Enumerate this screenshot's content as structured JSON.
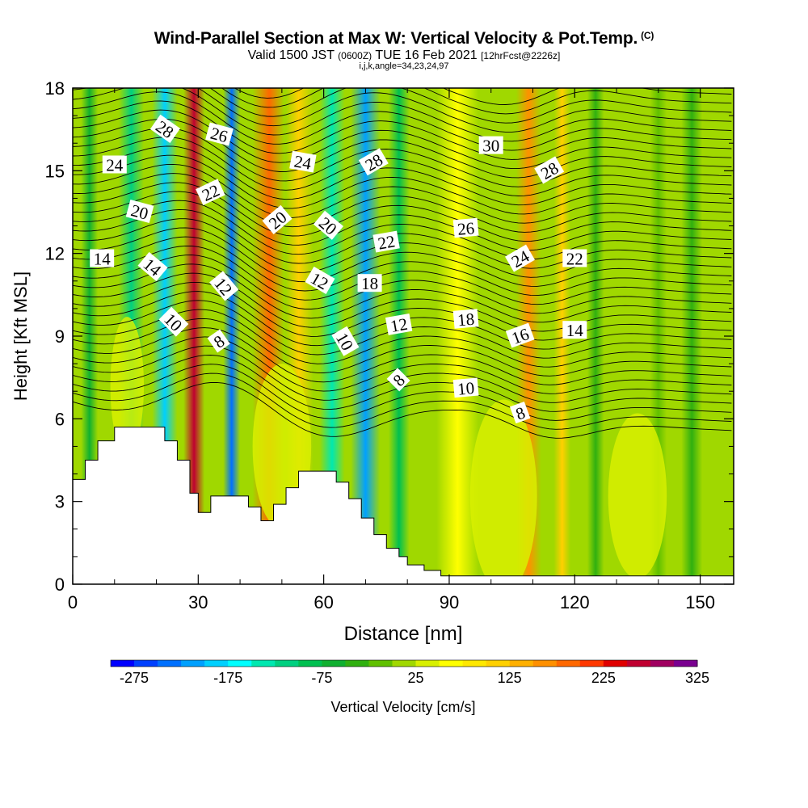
{
  "header": {
    "title": "Wind-Parallel Section at Max W: Vertical Velocity & Pot.Temp.",
    "copyright": "(C)",
    "valid_prefix": "Valid 1500 JST",
    "valid_z": "(0600Z)",
    "valid_date": "TUE 16 Feb 2021",
    "forecast": "[12hrFcst@2226z]",
    "indices": "i,j,k,angle=34,23,24,97"
  },
  "chart_data": {
    "type": "heatmap",
    "xlabel": "Distance [nm]",
    "ylabel": "Height [Kft MSL]",
    "xlim": [
      0,
      158
    ],
    "ylim": [
      0,
      18
    ],
    "x_ticks": [
      0,
      30,
      60,
      90,
      120,
      150
    ],
    "y_ticks": [
      0,
      3,
      6,
      9,
      12,
      15,
      18
    ],
    "colorbar": {
      "label": "Vertical Velocity [cm/s]",
      "tick_labels": [
        "-275",
        "-175",
        "-75",
        "25",
        "125",
        "225",
        "325"
      ],
      "min": -300,
      "max": 325,
      "step": 25,
      "colors": [
        "#0000ff",
        "#0040ff",
        "#0070ff",
        "#00a0ff",
        "#00d0ff",
        "#00ffff",
        "#00e8b0",
        "#00d080",
        "#00c050",
        "#10b030",
        "#30b010",
        "#60c000",
        "#a0d800",
        "#d8f000",
        "#ffff00",
        "#ffe800",
        "#ffd000",
        "#ffb000",
        "#ff9000",
        "#ff6800",
        "#ff3800",
        "#e00000",
        "#c00030",
        "#a00060",
        "#7a0090"
      ]
    },
    "terrain": [
      [
        0,
        3.8
      ],
      [
        3,
        4.5
      ],
      [
        6,
        5.2
      ],
      [
        10,
        5.7
      ],
      [
        19,
        5.7
      ],
      [
        22,
        5.2
      ],
      [
        25,
        4.5
      ],
      [
        28,
        3.3
      ],
      [
        30,
        2.6
      ],
      [
        33,
        3.2
      ],
      [
        39,
        3.2
      ],
      [
        42,
        2.8
      ],
      [
        45,
        2.3
      ],
      [
        48,
        2.9
      ],
      [
        51,
        3.5
      ],
      [
        54,
        4.1
      ],
      [
        60,
        4.1
      ],
      [
        63,
        3.7
      ],
      [
        66,
        3.1
      ],
      [
        69,
        2.4
      ],
      [
        72,
        1.8
      ],
      [
        75,
        1.3
      ],
      [
        78,
        1.0
      ],
      [
        80,
        0.7
      ],
      [
        84,
        0.5
      ],
      [
        88,
        0.3
      ],
      [
        158,
        0.3
      ]
    ],
    "w_bands": [
      {
        "x": 4,
        "w": 4,
        "value": -75
      },
      {
        "x": 14,
        "w": 6,
        "value": -125
      },
      {
        "x": 22,
        "w": 6,
        "value": -200
      },
      {
        "x": 29,
        "w": 5,
        "value": 250
      },
      {
        "x": 38,
        "w": 4,
        "value": -250
      },
      {
        "x": 47,
        "w": 8,
        "value": 175
      },
      {
        "x": 54,
        "w": 7,
        "value": 100
      },
      {
        "x": 62,
        "w": 6,
        "value": -150
      },
      {
        "x": 70,
        "w": 7,
        "value": -225
      },
      {
        "x": 78,
        "w": 5,
        "value": -100
      },
      {
        "x": 92,
        "w": 10,
        "value": 50
      },
      {
        "x": 109,
        "w": 6,
        "value": 150
      },
      {
        "x": 117,
        "w": 4,
        "value": 100
      },
      {
        "x": 125,
        "w": 4,
        "value": -50
      },
      {
        "x": 133,
        "w": 5,
        "value": 0
      },
      {
        "x": 140,
        "w": 4,
        "value": -25
      },
      {
        "x": 148,
        "w": 5,
        "value": -50
      }
    ],
    "theta_labels": [
      {
        "text": "28",
        "x": 22,
        "y": 16.5,
        "rot": 35
      },
      {
        "text": "26",
        "x": 35,
        "y": 16.3,
        "rot": 15
      },
      {
        "text": "24",
        "x": 10,
        "y": 15.2,
        "rot": 0
      },
      {
        "text": "22",
        "x": 33,
        "y": 14.2,
        "rot": -25
      },
      {
        "text": "20",
        "x": 16,
        "y": 13.5,
        "rot": 15
      },
      {
        "text": "14",
        "x": 7,
        "y": 11.8,
        "rot": 0
      },
      {
        "text": "14",
        "x": 19,
        "y": 11.5,
        "rot": 40
      },
      {
        "text": "10",
        "x": 24,
        "y": 9.5,
        "rot": 45
      },
      {
        "text": "12",
        "x": 36,
        "y": 10.8,
        "rot": 50
      },
      {
        "text": "8",
        "x": 35,
        "y": 8.8,
        "rot": -35
      },
      {
        "text": "24",
        "x": 55,
        "y": 15.3,
        "rot": 10
      },
      {
        "text": "20",
        "x": 49,
        "y": 13.2,
        "rot": -40
      },
      {
        "text": "20",
        "x": 61,
        "y": 13.0,
        "rot": 40
      },
      {
        "text": "12",
        "x": 59,
        "y": 11.0,
        "rot": 30
      },
      {
        "text": "10",
        "x": 65,
        "y": 8.8,
        "rot": 60
      },
      {
        "text": "28",
        "x": 72,
        "y": 15.3,
        "rot": -30
      },
      {
        "text": "22",
        "x": 75,
        "y": 12.4,
        "rot": -10
      },
      {
        "text": "18",
        "x": 71,
        "y": 10.9,
        "rot": 0
      },
      {
        "text": "12",
        "x": 78,
        "y": 9.4,
        "rot": -10
      },
      {
        "text": "8",
        "x": 78,
        "y": 7.4,
        "rot": -45
      },
      {
        "text": "30",
        "x": 100,
        "y": 15.9,
        "rot": 0
      },
      {
        "text": "26",
        "x": 94,
        "y": 12.9,
        "rot": -5
      },
      {
        "text": "18",
        "x": 94,
        "y": 9.6,
        "rot": -5
      },
      {
        "text": "10",
        "x": 94,
        "y": 7.1,
        "rot": -5
      },
      {
        "text": "28",
        "x": 114,
        "y": 15.0,
        "rot": -30
      },
      {
        "text": "24",
        "x": 107,
        "y": 11.8,
        "rot": -30
      },
      {
        "text": "22",
        "x": 120,
        "y": 11.8,
        "rot": 0
      },
      {
        "text": "16",
        "x": 107,
        "y": 9.0,
        "rot": -20
      },
      {
        "text": "14",
        "x": 120,
        "y": 9.2,
        "rot": 0
      },
      {
        "text": "8",
        "x": 107,
        "y": 6.2,
        "rot": -20
      }
    ]
  }
}
